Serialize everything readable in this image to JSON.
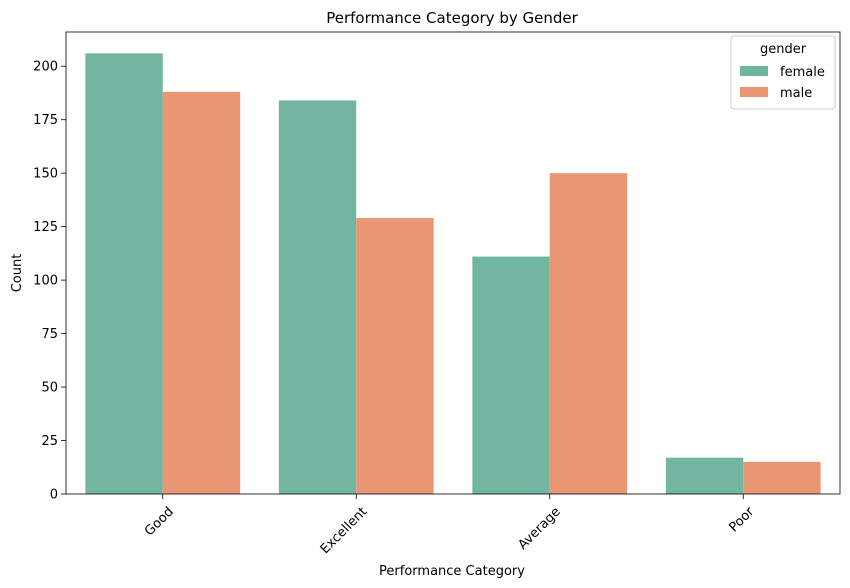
{
  "chart_data": {
    "type": "bar",
    "title": "Performance Category by Gender",
    "xlabel": "Performance Category",
    "ylabel": "Count",
    "categories": [
      "Good",
      "Excellent",
      "Average",
      "Poor"
    ],
    "series": [
      {
        "name": "female",
        "values": [
          206,
          184,
          111,
          17
        ],
        "color": "#72b6a1"
      },
      {
        "name": "male",
        "values": [
          188,
          129,
          150,
          15
        ],
        "color": "#e99675"
      }
    ],
    "ylim": [
      0,
      216
    ],
    "yticks": [
      0,
      25,
      50,
      75,
      100,
      125,
      150,
      175,
      200
    ],
    "ytick_labels": [
      "0",
      "25",
      "50",
      "75",
      "100",
      "125",
      "150",
      "175",
      "200"
    ],
    "grid": false,
    "legend": {
      "title": "gender",
      "position": "top-right"
    }
  }
}
